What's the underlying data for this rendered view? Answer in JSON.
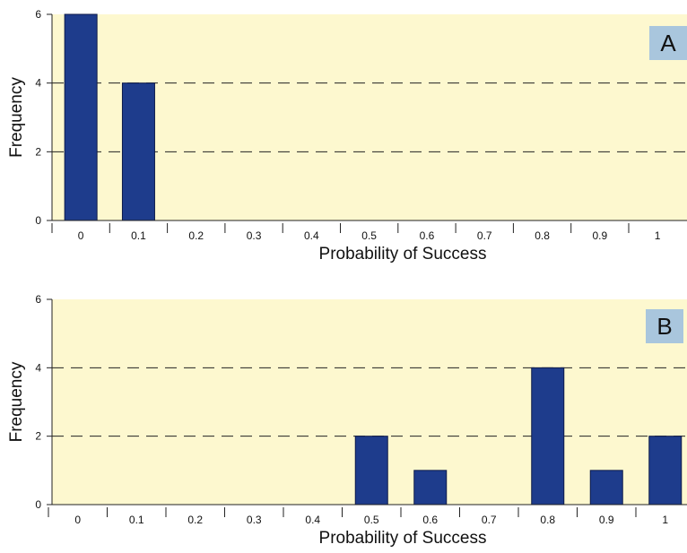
{
  "colors": {
    "plot_background": "#fdf8cf",
    "bar_fill": "#1e3c8c",
    "bar_stroke": "#0d1a4a",
    "panel_label_bg": "#a9c6dd"
  },
  "chart_data": [
    {
      "type": "bar",
      "panel_label": "A",
      "categories": [
        "0",
        "0.1",
        "0.2",
        "0.3",
        "0.4",
        "0.5",
        "0.6",
        "0.7",
        "0.8",
        "0.9",
        "1"
      ],
      "values": [
        6,
        4,
        0,
        0,
        0,
        0,
        0,
        0,
        0,
        0,
        0
      ],
      "xlabel": "Probability of Success",
      "ylabel": "Frequency",
      "ylim": [
        0,
        6
      ],
      "yticks": [
        "0",
        "2",
        "4",
        "6"
      ],
      "grid": "dashed horizontal at 2 and 4",
      "legend": "none"
    },
    {
      "type": "bar",
      "panel_label": "B",
      "categories": [
        "0",
        "0.1",
        "0.2",
        "0.3",
        "0.4",
        "0.5",
        "0.6",
        "0.7",
        "0.8",
        "0.9",
        "1"
      ],
      "values": [
        0,
        0,
        0,
        0,
        0,
        2,
        1,
        0,
        4,
        1,
        2
      ],
      "xlabel": "Probability of Success",
      "ylabel": "Frequency",
      "ylim": [
        0,
        6
      ],
      "yticks": [
        "0",
        "2",
        "4",
        "6"
      ],
      "grid": "dashed horizontal at 2 and 4",
      "legend": "none"
    }
  ]
}
